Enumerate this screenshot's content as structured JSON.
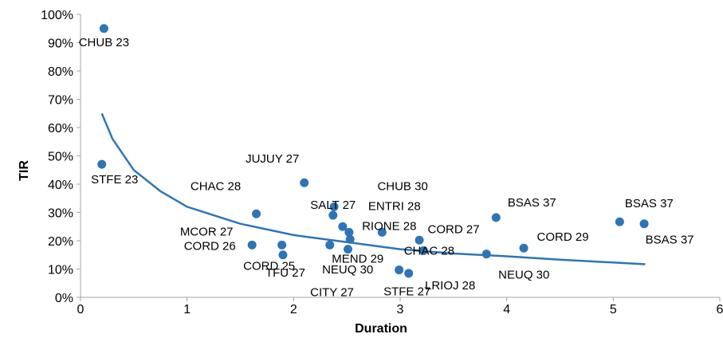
{
  "chart_data": {
    "type": "scatter",
    "title": "",
    "xlabel": "Duration",
    "ylabel": "TIR",
    "xlim": [
      0,
      6
    ],
    "ylim": [
      0,
      100
    ],
    "x_ticks": [
      "0",
      "1",
      "2",
      "3",
      "4",
      "5",
      "6"
    ],
    "y_ticks": [
      "0%",
      "10%",
      "20%",
      "30%",
      "40%",
      "50%",
      "60%",
      "70%",
      "80%",
      "90%",
      "100%"
    ],
    "grid": false,
    "legend": "none",
    "colors": {
      "points": "#2E75B6",
      "trendline": "#2E75B6"
    },
    "points": [
      {
        "label": "CHUB 23",
        "x": 0.22,
        "y": 95.0
      },
      {
        "label": "STFE 23",
        "x": 0.2,
        "y": 47.0
      },
      {
        "label": "JUJUY 27",
        "x": 2.1,
        "y": 40.5
      },
      {
        "label": "CHUB 30",
        "x": 2.38,
        "y": 32.0
      },
      {
        "label": "CHAC 28",
        "x": 1.65,
        "y": 29.5
      },
      {
        "label": "SALT 27",
        "x": 2.37,
        "y": 29.0
      },
      {
        "label": "ENTRI 28",
        "x": 2.46,
        "y": 25.0
      },
      {
        "label": "MCOR 27",
        "x": 2.52,
        "y": 23.0
      },
      {
        "label": "RIONE 28",
        "x": 2.83,
        "y": 23.0
      },
      {
        "label": "BSAS 37",
        "x": 3.9,
        "y": 28.2
      },
      {
        "label": "BSAS 37",
        "x": 5.06,
        "y": 26.7
      },
      {
        "label": "BSAS 37",
        "x": 5.29,
        "y": 26.0
      },
      {
        "label": "CORD 27",
        "x": 3.18,
        "y": 20.2
      },
      {
        "label": "CORD 29",
        "x": 4.16,
        "y": 17.4
      },
      {
        "label": "CORD 26",
        "x": 1.61,
        "y": 18.5
      },
      {
        "label": "CORD 25",
        "x": 1.89,
        "y": 18.5
      },
      {
        "label": "TFU 27",
        "x": 1.9,
        "y": 15.0
      },
      {
        "label": "MEND 29",
        "x": 2.34,
        "y": 18.5
      },
      {
        "label": "NEUQ 30",
        "x": 2.53,
        "y": 20.5
      },
      {
        "label": "CITY 27",
        "x": 2.51,
        "y": 17.0
      },
      {
        "label": "CHAC 28",
        "x": 3.22,
        "y": 16.5
      },
      {
        "label": "NEUQ 30",
        "x": 3.81,
        "y": 15.3
      },
      {
        "label": "STFE 27",
        "x": 2.99,
        "y": 9.7
      },
      {
        "label": "LRIOJ 28",
        "x": 3.08,
        "y": 8.5
      }
    ],
    "trendline": {
      "type": "logarithmic",
      "x": [
        0.2,
        0.3,
        0.5,
        0.75,
        1.0,
        1.5,
        2.0,
        2.5,
        3.0,
        3.5,
        4.0,
        4.5,
        5.0,
        5.3
      ],
      "y": [
        65.0,
        56.0,
        45.0,
        37.5,
        32.0,
        26.0,
        22.0,
        19.5,
        17.0,
        15.5,
        14.5,
        13.3,
        12.3,
        11.7
      ]
    }
  }
}
